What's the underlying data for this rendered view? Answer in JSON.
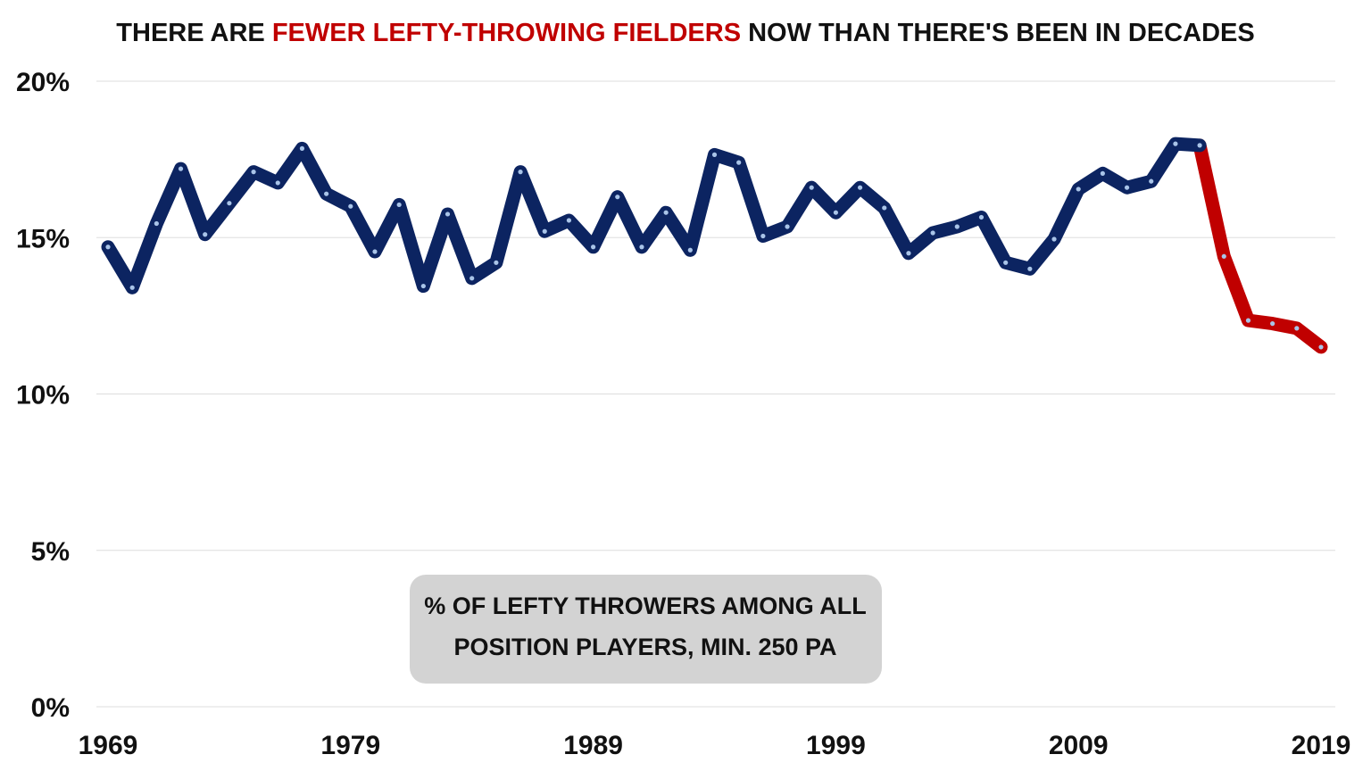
{
  "chart_data": {
    "type": "line",
    "title_parts": [
      {
        "text": "THERE ARE ",
        "color": "#111111"
      },
      {
        "text": "FEWER LEFTY-THROWING FIELDERS",
        "color": "#c00000"
      },
      {
        "text": " NOW THAN THERE'S BEEN IN DECADES",
        "color": "#111111"
      }
    ],
    "annotation": [
      "% OF LEFTY THROWERS AMONG ALL",
      "POSITION PLAYERS, MIN. 250 PA"
    ],
    "xlabel": "",
    "ylabel": "",
    "xlim": [
      1969,
      2019
    ],
    "ylim": [
      0,
      20
    ],
    "x_ticks": [
      1969,
      1979,
      1989,
      1999,
      2009,
      2019
    ],
    "y_ticks": [
      0,
      5,
      10,
      15,
      20
    ],
    "y_tick_labels": [
      "0%",
      "5%",
      "10%",
      "15%",
      "20%"
    ],
    "grid": "horizontal",
    "colors": {
      "main": "#0c2461",
      "highlight": "#c00000",
      "dot": "#a9c4e8",
      "grid": "#dddddd",
      "annotation_bg": "#d3d3d3"
    },
    "highlight_from_year": 2014,
    "x": [
      1969,
      1970,
      1971,
      1972,
      1973,
      1974,
      1975,
      1976,
      1977,
      1978,
      1979,
      1980,
      1981,
      1982,
      1983,
      1984,
      1985,
      1986,
      1987,
      1988,
      1989,
      1990,
      1991,
      1992,
      1993,
      1994,
      1995,
      1996,
      1997,
      1998,
      1999,
      2000,
      2001,
      2002,
      2003,
      2004,
      2005,
      2006,
      2007,
      2008,
      2009,
      2010,
      2011,
      2012,
      2013,
      2014,
      2015,
      2016,
      2017,
      2018,
      2019
    ],
    "values": [
      14.7,
      13.4,
      15.45,
      17.2,
      15.1,
      16.1,
      17.1,
      16.75,
      17.85,
      16.4,
      16.0,
      14.55,
      16.05,
      13.45,
      15.75,
      13.7,
      14.2,
      17.1,
      15.2,
      15.55,
      14.7,
      16.3,
      14.7,
      15.8,
      14.6,
      17.65,
      17.4,
      15.05,
      15.35,
      16.6,
      15.8,
      16.6,
      15.95,
      14.5,
      15.15,
      15.35,
      15.65,
      14.2,
      14.0,
      14.95,
      16.55,
      17.05,
      16.6,
      16.8,
      18.0,
      17.95,
      14.4,
      12.35,
      12.25,
      12.1,
      11.5
    ]
  }
}
